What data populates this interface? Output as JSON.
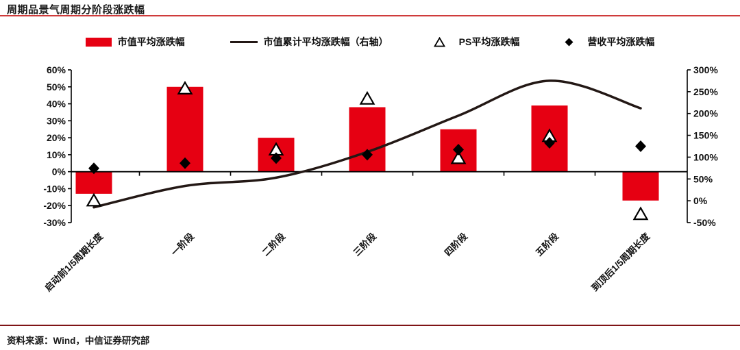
{
  "header": {
    "title": "周期品景气周期分阶段涨跌幅"
  },
  "footer": {
    "source": "资料来源：Wind，中信证券研究部"
  },
  "colors": {
    "bar": "#e60012",
    "line": "#231815",
    "marker": "#000000",
    "triangle_fill": "#ffffff",
    "axis": "#000000",
    "title_rule": "#cf3b3b",
    "footer_rule": "#7f1416",
    "text": "#111111"
  },
  "legend": [
    {
      "marker": "bar-swatch",
      "label": "市值平均涨跌幅"
    },
    {
      "marker": "line-swatch",
      "label": "市值累计平均涨跌幅（右轴）"
    },
    {
      "marker": "open-triangle",
      "label": "PS平均涨跌幅"
    },
    {
      "marker": "filled-diamond",
      "label": "营收平均涨跌幅"
    }
  ],
  "chart_data": {
    "type": "bar",
    "title": "周期品景气周期分阶段涨跌幅",
    "categories": [
      "启动前1/5周期长度",
      "一阶段",
      "二阶段",
      "三阶段",
      "四阶段",
      "五阶段",
      "到顶后1/5周期长度"
    ],
    "series": [
      {
        "name": "市值平均涨跌幅",
        "type": "bar",
        "axis": "left",
        "values": [
          -13,
          50,
          20,
          38,
          25,
          39,
          -17
        ]
      },
      {
        "name": "市值累计平均涨跌幅（右轴）",
        "type": "line",
        "axis": "right",
        "values": [
          -15,
          34,
          53,
          112,
          195,
          275,
          212
        ]
      },
      {
        "name": "PS平均涨跌幅",
        "type": "scatter",
        "marker": "open-triangle",
        "axis": "left",
        "values": [
          -17,
          49,
          13,
          43,
          8,
          21,
          -25
        ]
      },
      {
        "name": "营收平均涨跌幅",
        "type": "scatter",
        "marker": "filled-diamond",
        "axis": "left",
        "values": [
          2,
          5,
          8,
          10,
          13,
          17,
          15
        ]
      }
    ],
    "left_axis": {
      "min": -30,
      "max": 60,
      "step": 10,
      "format": "percent",
      "tick_labels": [
        "60%",
        "50%",
        "40%",
        "30%",
        "20%",
        "10%",
        "0%",
        "-10%",
        "-20%",
        "-30%"
      ]
    },
    "right_axis": {
      "min": -50,
      "max": 300,
      "step": 50,
      "format": "percent",
      "tick_labels": [
        "300%",
        "250%",
        "200%",
        "150%",
        "100%",
        "50%",
        "0%",
        "-50%"
      ]
    },
    "grid": false,
    "legend_position": "top"
  }
}
